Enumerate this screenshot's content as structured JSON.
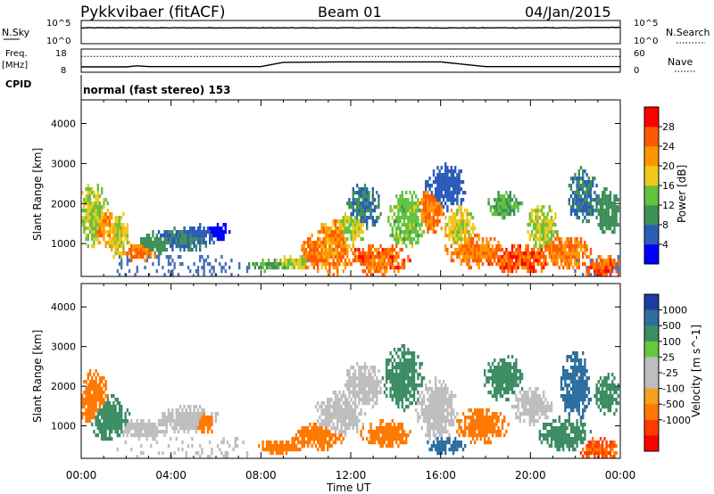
{
  "header": {
    "station": "Pykkvibaer (fitACF)",
    "beam": "Beam 01",
    "date": "04/Jan/2015"
  },
  "status_panels": {
    "nsky_label": "N.Sky",
    "nsearch_label": "N.Search",
    "noise_ticks": [
      "10^5",
      "10^0"
    ],
    "freq_label": "Freq.",
    "freq_unit": "[MHz]",
    "freq_ticks": [
      "18",
      "8"
    ],
    "nave_label": "Nave",
    "nave_ticks": [
      "60",
      "0"
    ],
    "cpid_label": "CPID",
    "cpid_text": "normal (fast stereo) 153"
  },
  "colors": {
    "power": [
      "#0000ff",
      "#2a5cb8",
      "#3f8f5a",
      "#63c23e",
      "#f0c81e",
      "#ff9600",
      "#ff5a00",
      "#ff0000"
    ],
    "velocity": [
      "#1e3ca0",
      "#2d6e9e",
      "#3c8c64",
      "#66c83c",
      "#bebebe",
      "#bebebe",
      "#f5a01e",
      "#ff7800",
      "#ff3c00",
      "#ff0000"
    ]
  },
  "chart_data": [
    {
      "type": "line",
      "title": "N.Sky / N.Search",
      "ylabel": "N.Sky",
      "y2label": "N.Search",
      "x": [
        "00:00",
        "02:00",
        "04:00",
        "06:00",
        "08:00",
        "10:00",
        "12:00",
        "14:00",
        "16:00",
        "18:00",
        "20:00",
        "22:00",
        "24:00"
      ],
      "series": [
        {
          "name": "N.Sky",
          "values": [
            3000,
            3200,
            3000,
            3100,
            3000,
            3000,
            3100,
            3200,
            3000,
            3000,
            3100,
            3200,
            4000
          ]
        }
      ],
      "ylim": [
        1,
        100000
      ],
      "yscale": "log"
    },
    {
      "type": "line",
      "title": "Freq. / Nave",
      "ylabel": "Freq. [MHz]",
      "y2label": "Nave",
      "x": [
        "00:00",
        "02:00",
        "02:30",
        "03:00",
        "07:00",
        "08:00",
        "09:00",
        "12:00",
        "16:00",
        "18:00",
        "20:00",
        "24:00"
      ],
      "series": [
        {
          "name": "Freq.",
          "values": [
            10.1,
            10.1,
            10.6,
            10.2,
            10.2,
            10.2,
            12.2,
            12.4,
            12.4,
            10.2,
            10.2,
            10.2
          ]
        },
        {
          "name": "Nave",
          "values": [
            42,
            42,
            42,
            42,
            42,
            42,
            42,
            42,
            42,
            42,
            42,
            42
          ]
        }
      ],
      "ylim": [
        8,
        18
      ],
      "y2lim": [
        0,
        60
      ]
    },
    {
      "type": "heatmap",
      "title": "Power",
      "xlabel": "",
      "ylabel": "Slant Range [km]",
      "xlim": [
        0,
        24
      ],
      "ylim": [
        180,
        4590
      ],
      "x_ticks": [
        "00:00",
        "04:00",
        "08:00",
        "12:00",
        "16:00",
        "20:00",
        "00:00"
      ],
      "y_ticks": [
        1000,
        2000,
        3000,
        4000
      ],
      "colorbar_label": "Power [dB]",
      "colorbar_ticks": [
        "4",
        "8",
        "12",
        "16",
        "20",
        "24",
        "28"
      ],
      "blobs": [
        {
          "t": 0.5,
          "r": 1700,
          "dt": 0.6,
          "dr": 700,
          "v": 18
        },
        {
          "t": 1.0,
          "r": 1400,
          "dt": 0.5,
          "dr": 400,
          "v": 24
        },
        {
          "t": 1.6,
          "r": 1200,
          "dt": 0.5,
          "dr": 500,
          "v": 20
        },
        {
          "t": 2.5,
          "r": 800,
          "dt": 0.8,
          "dr": 200,
          "v": 26
        },
        {
          "t": 3.2,
          "r": 1000,
          "dt": 0.7,
          "dr": 250,
          "v": 12
        },
        {
          "t": 4.5,
          "r": 1100,
          "dt": 1.3,
          "dr": 250,
          "v": 10
        },
        {
          "t": 5.3,
          "r": 1250,
          "dt": 0.9,
          "dr": 200,
          "v": 8
        },
        {
          "t": 6.0,
          "r": 1300,
          "dt": 0.5,
          "dr": 200,
          "v": 5
        },
        {
          "t": 8.3,
          "r": 450,
          "dt": 0.8,
          "dr": 120,
          "v": 14
        },
        {
          "t": 9.5,
          "r": 550,
          "dt": 0.8,
          "dr": 150,
          "v": 18
        },
        {
          "t": 10.3,
          "r": 750,
          "dt": 0.5,
          "dr": 400,
          "v": 26
        },
        {
          "t": 11.2,
          "r": 900,
          "dt": 0.8,
          "dr": 600,
          "v": 24
        },
        {
          "t": 12.0,
          "r": 1400,
          "dt": 0.6,
          "dr": 400,
          "v": 18
        },
        {
          "t": 12.5,
          "r": 1900,
          "dt": 0.7,
          "dr": 500,
          "v": 10
        },
        {
          "t": 13.2,
          "r": 600,
          "dt": 1.2,
          "dr": 350,
          "v": 27
        },
        {
          "t": 14.5,
          "r": 1600,
          "dt": 0.8,
          "dr": 600,
          "v": 16
        },
        {
          "t": 15.5,
          "r": 1800,
          "dt": 0.6,
          "dr": 500,
          "v": 26
        },
        {
          "t": 16.2,
          "r": 2400,
          "dt": 0.8,
          "dr": 500,
          "v": 8
        },
        {
          "t": 16.8,
          "r": 1400,
          "dt": 0.6,
          "dr": 500,
          "v": 20
        },
        {
          "t": 17.5,
          "r": 800,
          "dt": 1.2,
          "dr": 350,
          "v": 26
        },
        {
          "t": 18.8,
          "r": 2000,
          "dt": 0.7,
          "dr": 300,
          "v": 14
        },
        {
          "t": 19.5,
          "r": 600,
          "dt": 1.5,
          "dr": 300,
          "v": 28
        },
        {
          "t": 20.5,
          "r": 1400,
          "dt": 0.6,
          "dr": 500,
          "v": 18
        },
        {
          "t": 21.5,
          "r": 800,
          "dt": 1.0,
          "dr": 400,
          "v": 26
        },
        {
          "t": 22.3,
          "r": 2200,
          "dt": 0.6,
          "dr": 600,
          "v": 10
        },
        {
          "t": 23.2,
          "r": 400,
          "dt": 0.8,
          "dr": 250,
          "v": 28
        },
        {
          "t": 23.4,
          "r": 1800,
          "dt": 0.5,
          "dr": 500,
          "v": 12
        }
      ]
    },
    {
      "type": "heatmap",
      "title": "Velocity",
      "xlabel": "Time UT",
      "ylabel": "Slant Range [km]",
      "xlim": [
        0,
        24
      ],
      "ylim": [
        180,
        4590
      ],
      "x_ticks": [
        "00:00",
        "04:00",
        "08:00",
        "12:00",
        "16:00",
        "20:00",
        "00:00"
      ],
      "y_ticks": [
        1000,
        2000,
        3000,
        4000
      ],
      "colorbar_label": "Velocity [m s^-1]",
      "colorbar_ticks": [
        "1000",
        "500",
        "100",
        "25",
        "-25",
        "-100",
        "-500",
        "-1000"
      ],
      "blobs": [
        {
          "t": 0.5,
          "r": 1700,
          "dt": 0.6,
          "dr": 600,
          "v": -120
        },
        {
          "t": 1.2,
          "r": 1200,
          "dt": 0.8,
          "dr": 500,
          "v": 80
        },
        {
          "t": 2.8,
          "r": 900,
          "dt": 1.0,
          "dr": 250,
          "v": 0
        },
        {
          "t": 4.8,
          "r": 1150,
          "dt": 1.2,
          "dr": 300,
          "v": 0
        },
        {
          "t": 5.4,
          "r": 1100,
          "dt": 0.5,
          "dr": 300,
          "v": -150
        },
        {
          "t": 8.8,
          "r": 480,
          "dt": 1.0,
          "dr": 150,
          "v": -250
        },
        {
          "t": 10.5,
          "r": 700,
          "dt": 1.0,
          "dr": 300,
          "v": -200
        },
        {
          "t": 11.5,
          "r": 1300,
          "dt": 1.0,
          "dr": 500,
          "v": 0
        },
        {
          "t": 12.5,
          "r": 2000,
          "dt": 0.8,
          "dr": 500,
          "v": 0
        },
        {
          "t": 13.5,
          "r": 800,
          "dt": 1.0,
          "dr": 300,
          "v": -250
        },
        {
          "t": 14.3,
          "r": 2200,
          "dt": 0.8,
          "dr": 700,
          "v": 100
        },
        {
          "t": 15.8,
          "r": 1400,
          "dt": 0.8,
          "dr": 700,
          "v": 0
        },
        {
          "t": 16.2,
          "r": 500,
          "dt": 0.8,
          "dr": 200,
          "v": 500
        },
        {
          "t": 17.8,
          "r": 1000,
          "dt": 1.0,
          "dr": 400,
          "v": -150
        },
        {
          "t": 18.8,
          "r": 2200,
          "dt": 0.8,
          "dr": 500,
          "v": 100
        },
        {
          "t": 20.0,
          "r": 1500,
          "dt": 0.8,
          "dr": 400,
          "v": 0
        },
        {
          "t": 21.5,
          "r": 800,
          "dt": 1.0,
          "dr": 400,
          "v": 250
        },
        {
          "t": 22.0,
          "r": 2000,
          "dt": 0.6,
          "dr": 800,
          "v": 600
        },
        {
          "t": 23.0,
          "r": 400,
          "dt": 0.8,
          "dr": 250,
          "v": -300
        },
        {
          "t": 23.4,
          "r": 1800,
          "dt": 0.5,
          "dr": 500,
          "v": 200
        }
      ]
    }
  ]
}
